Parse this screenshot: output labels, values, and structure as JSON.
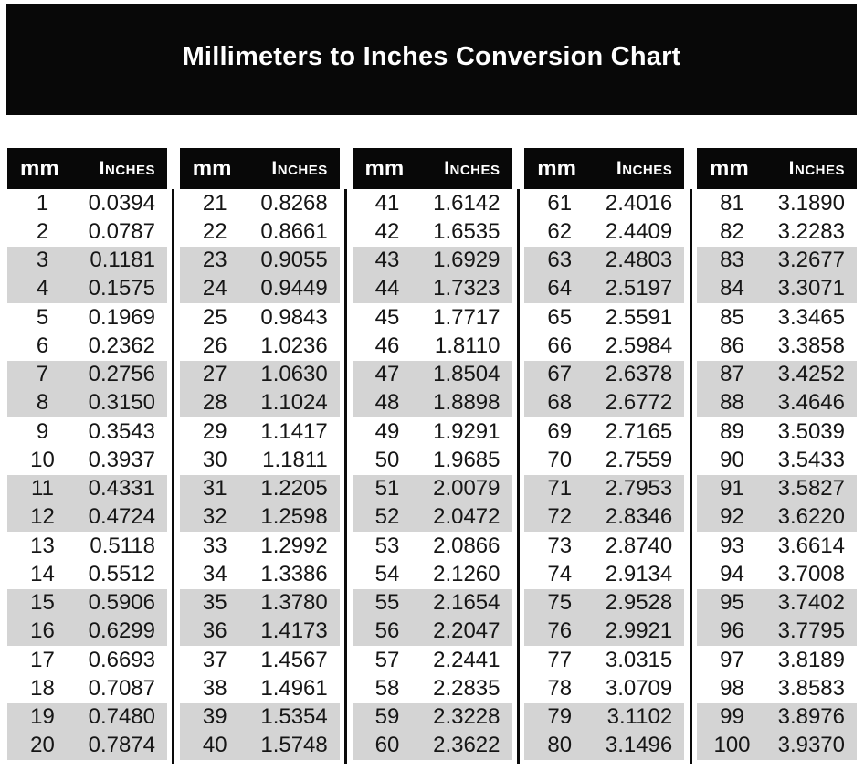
{
  "title": "Millimeters to Inches Conversion Chart",
  "colors": {
    "banner_bg": "#080808",
    "header_bg": "#080808",
    "band_gray": "#d4d4d4",
    "text": "#161616",
    "banner_text": "#ffffff",
    "divider": "#0a0a0a"
  },
  "table": {
    "header": {
      "mm": "mm",
      "inches": "Inches"
    },
    "groups": [
      {
        "rows": [
          [
            "1",
            "0.0394"
          ],
          [
            "2",
            "0.0787"
          ],
          [
            "3",
            "0.1181"
          ],
          [
            "4",
            "0.1575"
          ],
          [
            "5",
            "0.1969"
          ],
          [
            "6",
            "0.2362"
          ],
          [
            "7",
            "0.2756"
          ],
          [
            "8",
            "0.3150"
          ],
          [
            "9",
            "0.3543"
          ],
          [
            "10",
            "0.3937"
          ],
          [
            "11",
            "0.4331"
          ],
          [
            "12",
            "0.4724"
          ],
          [
            "13",
            "0.5118"
          ],
          [
            "14",
            "0.5512"
          ],
          [
            "15",
            "0.5906"
          ],
          [
            "16",
            "0.6299"
          ],
          [
            "17",
            "0.6693"
          ],
          [
            "18",
            "0.7087"
          ],
          [
            "19",
            "0.7480"
          ],
          [
            "20",
            "0.7874"
          ]
        ]
      },
      {
        "rows": [
          [
            "21",
            "0.8268"
          ],
          [
            "22",
            "0.8661"
          ],
          [
            "23",
            "0.9055"
          ],
          [
            "24",
            "0.9449"
          ],
          [
            "25",
            "0.9843"
          ],
          [
            "26",
            "1.0236"
          ],
          [
            "27",
            "1.0630"
          ],
          [
            "28",
            "1.1024"
          ],
          [
            "29",
            "1.1417"
          ],
          [
            "30",
            "1.1811"
          ],
          [
            "31",
            "1.2205"
          ],
          [
            "32",
            "1.2598"
          ],
          [
            "33",
            "1.2992"
          ],
          [
            "34",
            "1.3386"
          ],
          [
            "35",
            "1.3780"
          ],
          [
            "36",
            "1.4173"
          ],
          [
            "37",
            "1.4567"
          ],
          [
            "38",
            "1.4961"
          ],
          [
            "39",
            "1.5354"
          ],
          [
            "40",
            "1.5748"
          ]
        ]
      },
      {
        "rows": [
          [
            "41",
            "1.6142"
          ],
          [
            "42",
            "1.6535"
          ],
          [
            "43",
            "1.6929"
          ],
          [
            "44",
            "1.7323"
          ],
          [
            "45",
            "1.7717"
          ],
          [
            "46",
            "1.8110"
          ],
          [
            "47",
            "1.8504"
          ],
          [
            "48",
            "1.8898"
          ],
          [
            "49",
            "1.9291"
          ],
          [
            "50",
            "1.9685"
          ],
          [
            "51",
            "2.0079"
          ],
          [
            "52",
            "2.0472"
          ],
          [
            "53",
            "2.0866"
          ],
          [
            "54",
            "2.1260"
          ],
          [
            "55",
            "2.1654"
          ],
          [
            "56",
            "2.2047"
          ],
          [
            "57",
            "2.2441"
          ],
          [
            "58",
            "2.2835"
          ],
          [
            "59",
            "2.3228"
          ],
          [
            "60",
            "2.3622"
          ]
        ]
      },
      {
        "rows": [
          [
            "61",
            "2.4016"
          ],
          [
            "62",
            "2.4409"
          ],
          [
            "63",
            "2.4803"
          ],
          [
            "64",
            "2.5197"
          ],
          [
            "65",
            "2.5591"
          ],
          [
            "66",
            "2.5984"
          ],
          [
            "67",
            "2.6378"
          ],
          [
            "68",
            "2.6772"
          ],
          [
            "69",
            "2.7165"
          ],
          [
            "70",
            "2.7559"
          ],
          [
            "71",
            "2.7953"
          ],
          [
            "72",
            "2.8346"
          ],
          [
            "73",
            "2.8740"
          ],
          [
            "74",
            "2.9134"
          ],
          [
            "75",
            "2.9528"
          ],
          [
            "76",
            "2.9921"
          ],
          [
            "77",
            "3.0315"
          ],
          [
            "78",
            "3.0709"
          ],
          [
            "79",
            "3.1102"
          ],
          [
            "80",
            "3.1496"
          ]
        ]
      },
      {
        "rows": [
          [
            "81",
            "3.1890"
          ],
          [
            "82",
            "3.2283"
          ],
          [
            "83",
            "3.2677"
          ],
          [
            "84",
            "3.3071"
          ],
          [
            "85",
            "3.3465"
          ],
          [
            "86",
            "3.3858"
          ],
          [
            "87",
            "3.4252"
          ],
          [
            "88",
            "3.4646"
          ],
          [
            "89",
            "3.5039"
          ],
          [
            "90",
            "3.5433"
          ],
          [
            "91",
            "3.5827"
          ],
          [
            "92",
            "3.6220"
          ],
          [
            "93",
            "3.6614"
          ],
          [
            "94",
            "3.7008"
          ],
          [
            "95",
            "3.7402"
          ],
          [
            "96",
            "3.7795"
          ],
          [
            "97",
            "3.8189"
          ],
          [
            "98",
            "3.8583"
          ],
          [
            "99",
            "3.8976"
          ],
          [
            "100",
            "3.9370"
          ]
        ]
      }
    ]
  }
}
